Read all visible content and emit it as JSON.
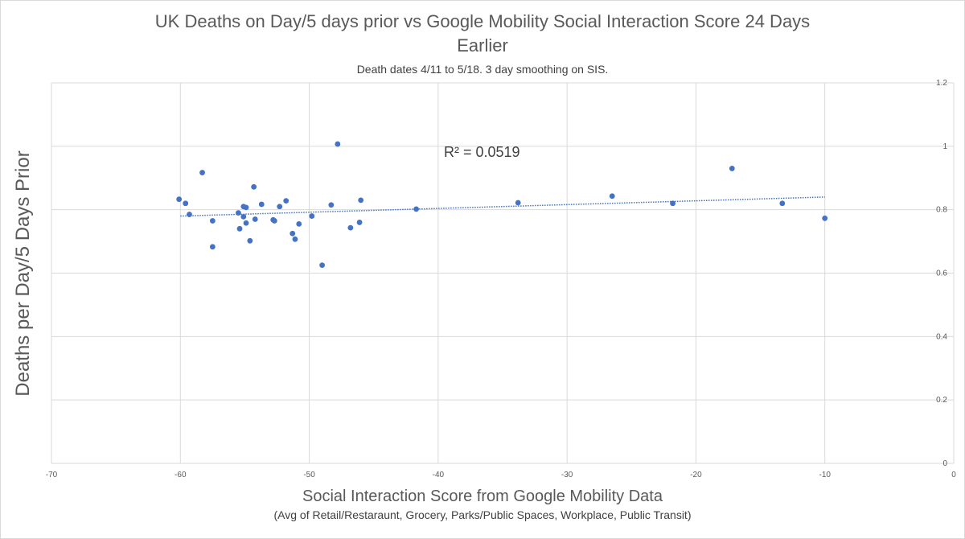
{
  "chart_data": {
    "type": "scatter",
    "title_line1": "UK Deaths on Day/5 days prior vs Google Mobility Social Interaction Score 24 Days",
    "title_line2": "Earlier",
    "subtitle": "Death dates 4/11 to 5/18.  3 day smoothing on SIS.",
    "xlabel": "Social Interaction Score from Google Mobility Data",
    "xlabel_sub": "(Avg of Retail/Restaraunt, Grocery, Parks/Public Spaces, Workplace, Public Transit)",
    "ylabel": "Deaths per Day/5 Days Prior",
    "annotation": "R² = 0.0519",
    "xlim": [
      -70,
      0
    ],
    "ylim": [
      0,
      1.2
    ],
    "x_ticks": [
      -70,
      -60,
      -50,
      -40,
      -30,
      -20,
      -10,
      0
    ],
    "y_ticks": [
      0,
      0.2,
      0.4,
      0.6,
      0.8,
      1,
      1.2
    ],
    "y_axis_position": "right",
    "grid": true,
    "marker_color": "#4472c4",
    "trendline": {
      "type": "linear",
      "style": "dotted",
      "x": [
        -60,
        -10
      ],
      "y": [
        0.78,
        0.84
      ]
    },
    "points": [
      {
        "x": -60.1,
        "y": 0.833
      },
      {
        "x": -59.6,
        "y": 0.82
      },
      {
        "x": -59.3,
        "y": 0.785
      },
      {
        "x": -58.3,
        "y": 0.917
      },
      {
        "x": -57.5,
        "y": 0.765
      },
      {
        "x": -57.5,
        "y": 0.683
      },
      {
        "x": -55.5,
        "y": 0.79
      },
      {
        "x": -55.4,
        "y": 0.74
      },
      {
        "x": -55.1,
        "y": 0.81
      },
      {
        "x": -55.1,
        "y": 0.778
      },
      {
        "x": -54.9,
        "y": 0.807
      },
      {
        "x": -54.9,
        "y": 0.758
      },
      {
        "x": -54.6,
        "y": 0.702
      },
      {
        "x": -54.3,
        "y": 0.872
      },
      {
        "x": -54.2,
        "y": 0.77
      },
      {
        "x": -53.7,
        "y": 0.817
      },
      {
        "x": -52.8,
        "y": 0.768
      },
      {
        "x": -52.7,
        "y": 0.765
      },
      {
        "x": -52.3,
        "y": 0.81
      },
      {
        "x": -51.8,
        "y": 0.828
      },
      {
        "x": -51.3,
        "y": 0.725
      },
      {
        "x": -51.1,
        "y": 0.707
      },
      {
        "x": -50.8,
        "y": 0.755
      },
      {
        "x": -49.8,
        "y": 0.78
      },
      {
        "x": -49.0,
        "y": 0.625
      },
      {
        "x": -48.3,
        "y": 0.815
      },
      {
        "x": -47.8,
        "y": 1.007
      },
      {
        "x": -46.8,
        "y": 0.743
      },
      {
        "x": -46.1,
        "y": 0.76
      },
      {
        "x": -46.0,
        "y": 0.83
      },
      {
        "x": -41.7,
        "y": 0.802
      },
      {
        "x": -33.8,
        "y": 0.822
      },
      {
        "x": -26.5,
        "y": 0.843
      },
      {
        "x": -21.8,
        "y": 0.82
      },
      {
        "x": -17.2,
        "y": 0.93
      },
      {
        "x": -13.3,
        "y": 0.82
      },
      {
        "x": -10.0,
        "y": 0.773
      }
    ]
  }
}
